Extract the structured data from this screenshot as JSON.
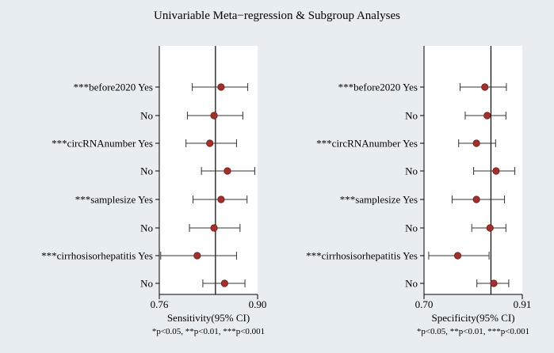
{
  "title": "Univariable Meta−regression & Subgroup Analyses",
  "chart_data": [
    {
      "type": "forest",
      "panel": "sensitivity",
      "xlabel": "Sensitivity(95% CI)",
      "xlim": [
        0.76,
        0.9
      ],
      "xticks": [
        0.76,
        0.9
      ],
      "xtick_labels": [
        "0.76",
        "0.90"
      ],
      "reference_line": 0.84,
      "footnote": "*p<0.05, **p<0.01, ***p<0.001",
      "rows": [
        {
          "label": "***before2020 Yes",
          "est": 0.848,
          "lo": 0.807,
          "hi": 0.886
        },
        {
          "label": "No",
          "est": 0.838,
          "lo": 0.8,
          "hi": 0.879
        },
        {
          "label": "***circRNAnumber Yes",
          "est": 0.832,
          "lo": 0.798,
          "hi": 0.87
        },
        {
          "label": "No",
          "est": 0.857,
          "lo": 0.82,
          "hi": 0.896
        },
        {
          "label": "***samplesize Yes",
          "est": 0.848,
          "lo": 0.808,
          "hi": 0.885
        },
        {
          "label": "No",
          "est": 0.838,
          "lo": 0.803,
          "hi": 0.875
        },
        {
          "label": "***cirrhosisorhepatitis Yes",
          "est": 0.814,
          "lo": 0.762,
          "hi": 0.87
        },
        {
          "label": "No",
          "est": 0.853,
          "lo": 0.822,
          "hi": 0.882
        }
      ]
    },
    {
      "type": "forest",
      "panel": "specificity",
      "xlabel": "Specificity(95% CI)",
      "xlim": [
        0.7,
        0.91
      ],
      "xticks": [
        0.7,
        0.91
      ],
      "xtick_labels": [
        "0.70",
        "0.91"
      ],
      "reference_line": 0.843,
      "footnote": "*p<0.05, **p<0.01, ***p<0.001",
      "rows": [
        {
          "label": "***before2020 Yes",
          "est": 0.83,
          "lo": 0.777,
          "hi": 0.876
        },
        {
          "label": "No",
          "est": 0.835,
          "lo": 0.788,
          "hi": 0.875
        },
        {
          "label": "***circRNAnumber Yes",
          "est": 0.812,
          "lo": 0.774,
          "hi": 0.853
        },
        {
          "label": "No",
          "est": 0.854,
          "lo": 0.806,
          "hi": 0.894
        },
        {
          "label": "***samplesize Yes",
          "est": 0.812,
          "lo": 0.76,
          "hi": 0.872
        },
        {
          "label": "No",
          "est": 0.841,
          "lo": 0.802,
          "hi": 0.875
        },
        {
          "label": "***cirrhosisorhepatitis Yes",
          "est": 0.772,
          "lo": 0.71,
          "hi": 0.839
        },
        {
          "label": "No",
          "est": 0.849,
          "lo": 0.813,
          "hi": 0.881
        }
      ]
    }
  ],
  "colors": {
    "background": "#e8edf1",
    "plot_area": "#ffffff",
    "marker_fill": "#a0312c",
    "marker_stroke": "#6b1a17",
    "line": "#333333"
  }
}
